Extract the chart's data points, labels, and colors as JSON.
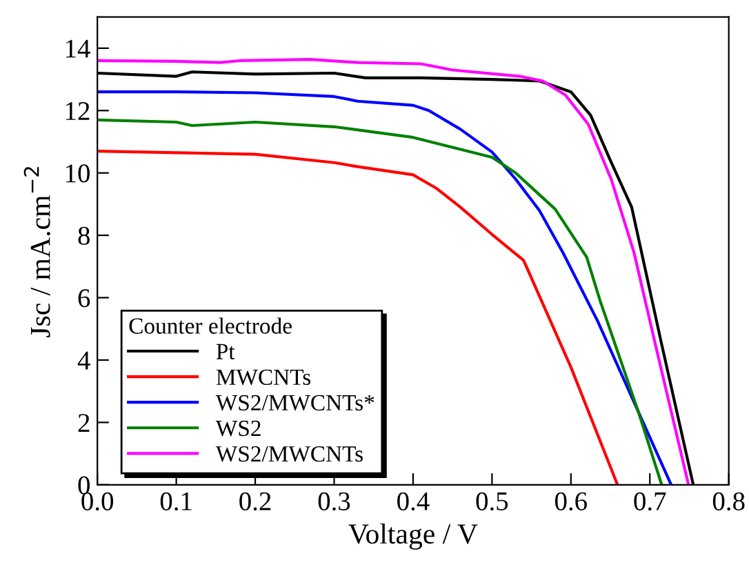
{
  "chart_data": {
    "type": "line",
    "xlabel": "Voltage / V",
    "ylabel": "Jsc / mA.cm$^{−2}$",
    "legend_title": "Counter electrode",
    "legend": "bottom left",
    "xlim": [
      0.0,
      0.8
    ],
    "ylim": [
      0,
      15
    ],
    "xticks": [
      {
        "value": 0,
        "label": "0.0"
      },
      0.1,
      0.2,
      0.3,
      0.4,
      0.5,
      0.6,
      0.7,
      0.8
    ],
    "yticks": [
      0,
      2,
      4,
      6,
      8,
      10,
      12,
      14
    ],
    "grid": false,
    "marker": "none",
    "line_style": "solid",
    "series": [
      {
        "name": "Pt",
        "color": "#000000",
        "x": [
          0,
          0.1,
          0.12,
          0.2,
          0.3,
          0.34,
          0.41,
          0.5,
          0.56,
          0.6,
          0.625,
          0.65,
          0.677,
          0.715,
          0.755
        ],
        "values": [
          13.2,
          13.1,
          13.24,
          13.17,
          13.2,
          13.05,
          13.05,
          13.0,
          12.95,
          12.6,
          11.85,
          10.4,
          8.9,
          4.5,
          0
        ]
      },
      {
        "name": "MWCNTs",
        "color": "#ff0000",
        "x": [
          0,
          0.1,
          0.2,
          0.3,
          0.33,
          0.4,
          0.43,
          0.46,
          0.5,
          0.54,
          0.6,
          0.659
        ],
        "values": [
          10.7,
          10.65,
          10.6,
          10.33,
          10.2,
          9.94,
          9.5,
          8.9,
          8.03,
          7.2,
          3.77,
          0
        ]
      },
      {
        "name": "WS2/MWCNTs*",
        "color": "#0000ff",
        "x": [
          0,
          0.1,
          0.2,
          0.3,
          0.33,
          0.4,
          0.42,
          0.46,
          0.5,
          0.53,
          0.56,
          0.59,
          0.634,
          0.727
        ],
        "values": [
          12.6,
          12.6,
          12.57,
          12.45,
          12.3,
          12.17,
          12.0,
          11.4,
          10.67,
          9.8,
          8.8,
          7.44,
          5.24,
          0
        ]
      },
      {
        "name": "WS2",
        "color": "#008000",
        "x": [
          0,
          0.1,
          0.12,
          0.2,
          0.3,
          0.4,
          0.5,
          0.53,
          0.58,
          0.62,
          0.637,
          0.686,
          0.715
        ],
        "values": [
          11.7,
          11.63,
          11.52,
          11.63,
          11.48,
          11.14,
          10.5,
          10.0,
          8.84,
          7.3,
          5.9,
          2.3,
          0
        ]
      },
      {
        "name": "WS2/MWCNTs",
        "color": "#ff00ff",
        "x": [
          0,
          0.098,
          0.156,
          0.18,
          0.27,
          0.33,
          0.41,
          0.45,
          0.535,
          0.564,
          0.593,
          0.622,
          0.651,
          0.68,
          0.707,
          0.749
        ],
        "values": [
          13.6,
          13.58,
          13.54,
          13.6,
          13.64,
          13.54,
          13.5,
          13.3,
          13.1,
          12.95,
          12.5,
          11.56,
          9.8,
          7.44,
          4.5,
          0
        ]
      }
    ]
  }
}
